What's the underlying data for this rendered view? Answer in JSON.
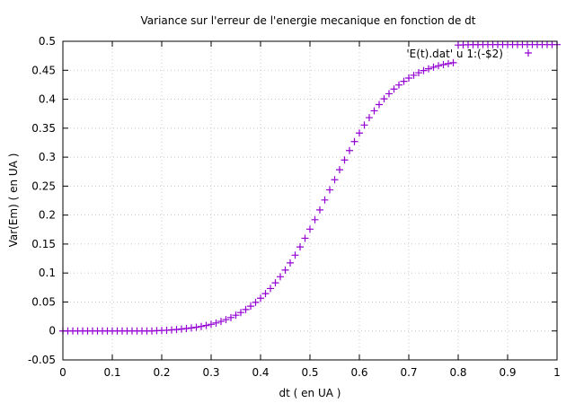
{
  "chart_data": {
    "type": "scatter",
    "title": "Variance sur l'erreur de l'energie mecanique en fonction de dt",
    "xlabel": "dt ( en UA )",
    "ylabel": "Var(Em) ( en UA )",
    "xlim": [
      0,
      1
    ],
    "ylim": [
      -0.05,
      0.5
    ],
    "grid": true,
    "legend_position": "top-right",
    "marker": "plus",
    "color": "#9400d3",
    "x_ticks": [
      "0",
      "0.1",
      "0.2",
      "0.3",
      "0.4",
      "0.5",
      "0.6",
      "0.7",
      "0.8",
      "0.9",
      "1"
    ],
    "y_ticks": [
      "-0.05",
      "0",
      "0.05",
      "0.1",
      "0.15",
      "0.2",
      "0.25",
      "0.3",
      "0.35",
      "0.4",
      "0.45",
      "0.5"
    ],
    "series": [
      {
        "name": "'E(t).dat' u 1:(-$2)",
        "x": [
          0.0,
          0.01,
          0.02,
          0.03,
          0.04,
          0.05,
          0.06,
          0.07,
          0.08,
          0.09,
          0.1,
          0.11,
          0.12,
          0.13,
          0.14,
          0.15,
          0.16,
          0.17,
          0.18,
          0.19,
          0.2,
          0.21,
          0.22,
          0.23,
          0.24,
          0.25,
          0.26,
          0.27,
          0.28,
          0.29,
          0.3,
          0.31,
          0.32,
          0.33,
          0.34,
          0.35,
          0.36,
          0.37,
          0.38,
          0.39,
          0.4,
          0.41,
          0.42,
          0.43,
          0.44,
          0.45,
          0.46,
          0.47,
          0.48,
          0.49,
          0.5,
          0.51,
          0.52,
          0.53,
          0.54,
          0.55,
          0.56,
          0.57,
          0.58,
          0.59,
          0.6,
          0.61,
          0.62,
          0.63,
          0.64,
          0.65,
          0.66,
          0.67,
          0.68,
          0.69,
          0.7,
          0.71,
          0.72,
          0.73,
          0.74,
          0.75,
          0.76,
          0.77,
          0.78,
          0.79,
          0.8,
          0.81,
          0.82,
          0.83,
          0.84,
          0.85,
          0.86,
          0.87,
          0.88,
          0.89,
          0.9,
          0.91,
          0.92,
          0.93,
          0.94,
          0.95,
          0.96,
          0.97,
          0.98,
          0.99,
          1.0
        ],
        "y": [
          0.0,
          0.0,
          0.0,
          0.0,
          0.0,
          0.0,
          0.0,
          0.0,
          0.0,
          0.0,
          0.0,
          0.0,
          0.0,
          0.0,
          0.0,
          0.0,
          0.0,
          0.0,
          0.0,
          0.0005,
          0.0008,
          0.0012,
          0.0018,
          0.0025,
          0.0033,
          0.0042,
          0.0052,
          0.0064,
          0.0078,
          0.0095,
          0.0115,
          0.0138,
          0.0165,
          0.0196,
          0.0231,
          0.0272,
          0.0318,
          0.037,
          0.0428,
          0.0493,
          0.0565,
          0.0645,
          0.0733,
          0.083,
          0.0936,
          0.1051,
          0.1175,
          0.1308,
          0.145,
          0.16,
          0.1757,
          0.192,
          0.2089,
          0.2261,
          0.2435,
          0.261,
          0.2782,
          0.2951,
          0.3114,
          0.3269,
          0.3416,
          0.3554,
          0.3682,
          0.38,
          0.3908,
          0.4006,
          0.4095,
          0.4175,
          0.4246,
          0.4309,
          0.4365,
          0.4414,
          0.4457,
          0.4494,
          0.4526,
          0.4553,
          0.4577,
          0.4597,
          0.4615,
          0.463,
          0.4935,
          0.4938,
          0.494,
          0.4942,
          0.4942,
          0.4943,
          0.4943,
          0.4943,
          0.4943,
          0.4943,
          0.4943,
          0.4943,
          0.4943,
          0.4943,
          0.4943,
          0.4943,
          0.4943,
          0.4943,
          0.4943,
          0.4943,
          0.4943
        ]
      }
    ]
  }
}
